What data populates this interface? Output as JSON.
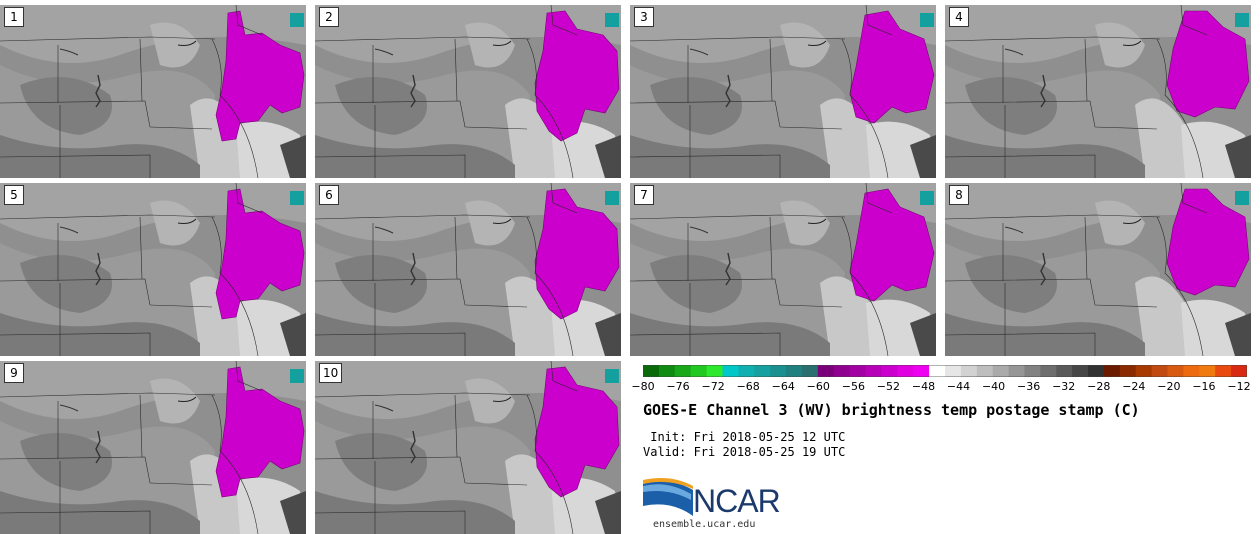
{
  "panels": [
    {
      "number": "1",
      "variant": 0
    },
    {
      "number": "2",
      "variant": 1
    },
    {
      "number": "3",
      "variant": 2
    },
    {
      "number": "4",
      "variant": 3
    },
    {
      "number": "5",
      "variant": 0
    },
    {
      "number": "6",
      "variant": 1
    },
    {
      "number": "7",
      "variant": 2
    },
    {
      "number": "8",
      "variant": 3
    },
    {
      "number": "9",
      "variant": 0
    },
    {
      "number": "10",
      "variant": 1
    }
  ],
  "colorbar": {
    "ticks": [
      "−80",
      "−76",
      "−72",
      "−68",
      "−64",
      "−60",
      "−56",
      "−52",
      "−48",
      "−44",
      "−40",
      "−36",
      "−32",
      "−28",
      "−24",
      "−20",
      "−16",
      "−12"
    ],
    "colors": [
      "#0a6a0a",
      "#118a11",
      "#19a819",
      "#22c822",
      "#2ee82e",
      "#00c8c8",
      "#10b0b0",
      "#16a0a0",
      "#1a9090",
      "#1f8080",
      "#2a6f70",
      "#7a007a",
      "#8f008f",
      "#a300a3",
      "#b800b8",
      "#cc00cc",
      "#e000e0",
      "#f000f0",
      "#ffffff",
      "#e6e6e6",
      "#d2d2d2",
      "#bebebe",
      "#aaaaaa",
      "#969696",
      "#828282",
      "#6e6e6e",
      "#5a5a5a",
      "#464646",
      "#323232",
      "#6b1a00",
      "#8a2a00",
      "#a83a00",
      "#c04a10",
      "#d85a10",
      "#ee6a10",
      "#f07a10",
      "#e84a10",
      "#d82a10"
    ],
    "accent_magenta": "#d000d0",
    "accent_cyan": "#15a0a0"
  },
  "title": "GOES-E Channel 3 (WV) brightness temp postage stamp (C)",
  "init_line": " Init: Fri 2018-05-25 12 UTC",
  "valid_line": "Valid: Fri 2018-05-25 19 UTC",
  "logo": {
    "name": "NCAR",
    "url": "ensemble.ucar.edu",
    "icon": "ncar-logo-icon"
  }
}
